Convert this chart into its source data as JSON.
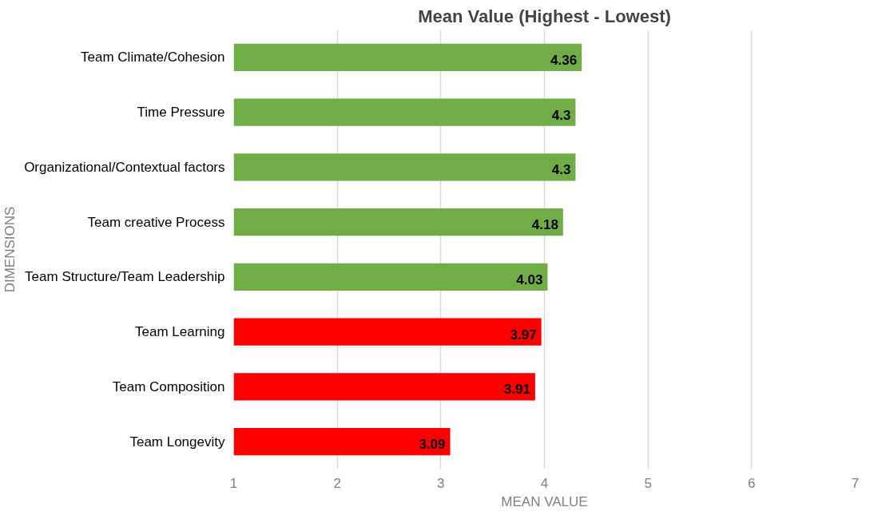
{
  "chart_data": {
    "type": "bar",
    "orientation": "horizontal",
    "title": "Mean Value (Highest - Lowest)",
    "xlabel": "MEAN VALUE",
    "ylabel": "DIMENSIONS",
    "categories": [
      "Team Climate/Cohesion",
      "Time Pressure",
      "Organizational/Contextual factors",
      "Team creative Process",
      "Team Structure/Team Leadership",
      "Team Learning",
      "Team Composition",
      "Team Longevity"
    ],
    "values": [
      4.36,
      4.3,
      4.3,
      4.18,
      4.03,
      3.97,
      3.91,
      3.09
    ],
    "colors": [
      "#70ad47",
      "#70ad47",
      "#70ad47",
      "#70ad47",
      "#70ad47",
      "#ff0000",
      "#ff0000",
      "#ff0000"
    ],
    "xlim": [
      1,
      7
    ],
    "xticks": [
      1,
      2,
      3,
      4,
      5,
      6,
      7
    ],
    "grid": "x",
    "data_labels": true
  }
}
